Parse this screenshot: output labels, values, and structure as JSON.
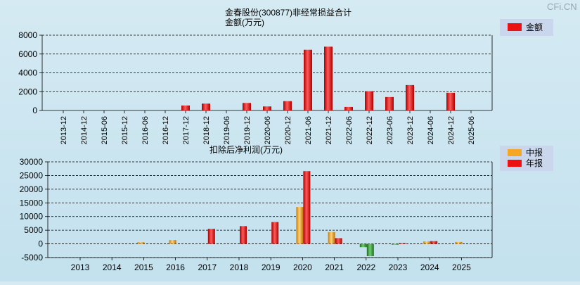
{
  "watermark": "CFi.CN",
  "colors": {
    "annual": "#ee1111",
    "interim": "#f5a623",
    "negative": "#2e8b2e",
    "legend_bg": "#c9d6ec"
  },
  "chart_data": [
    {
      "type": "bar",
      "title": "金春股份(300877)非经常损益合计",
      "ylabel": "金额(万元)",
      "ylim": [
        0,
        8000
      ],
      "yticks": [
        "0",
        "2000",
        "4000",
        "6000",
        "8000"
      ],
      "grid": true,
      "legend_position": "top-right",
      "categories": [
        "2013-12",
        "2014-12",
        "2015-06",
        "2015-12",
        "2016-06",
        "2016-12",
        "2017-12",
        "2018-12",
        "2019-06",
        "2019-12",
        "2020-06",
        "2020-12",
        "2021-06",
        "2021-12",
        "2022-06",
        "2022-12",
        "2023-06",
        "2023-12",
        "2024-06",
        "2024-12",
        "2025-06"
      ],
      "series": [
        {
          "name": "金额",
          "values": [
            0,
            0,
            0,
            0,
            0,
            0,
            530,
            730,
            0,
            800,
            430,
            990,
            6450,
            6780,
            380,
            2050,
            1430,
            2700,
            0,
            1880,
            0
          ]
        }
      ]
    },
    {
      "type": "bar",
      "title": "扣除后净利润(万元)",
      "ylim": [
        -5000,
        30000
      ],
      "yticks": [
        "-5000",
        "0",
        "5000",
        "10000",
        "15000",
        "20000",
        "25000",
        "30000"
      ],
      "grid": true,
      "legend_position": "top-right",
      "categories": [
        "2013",
        "2014",
        "2015",
        "2016",
        "2017",
        "2018",
        "2019",
        "2020",
        "2021",
        "2022",
        "2023",
        "2024",
        "2025"
      ],
      "series": [
        {
          "name": "中报",
          "values": [
            0,
            0,
            600,
            1400,
            0,
            0,
            0,
            13500,
            4300,
            -1200,
            -300,
            900,
            700
          ]
        },
        {
          "name": "年报",
          "values": [
            0,
            0,
            0,
            0,
            5500,
            6500,
            8000,
            26600,
            2100,
            -4500,
            300,
            1000,
            0
          ]
        }
      ]
    }
  ]
}
